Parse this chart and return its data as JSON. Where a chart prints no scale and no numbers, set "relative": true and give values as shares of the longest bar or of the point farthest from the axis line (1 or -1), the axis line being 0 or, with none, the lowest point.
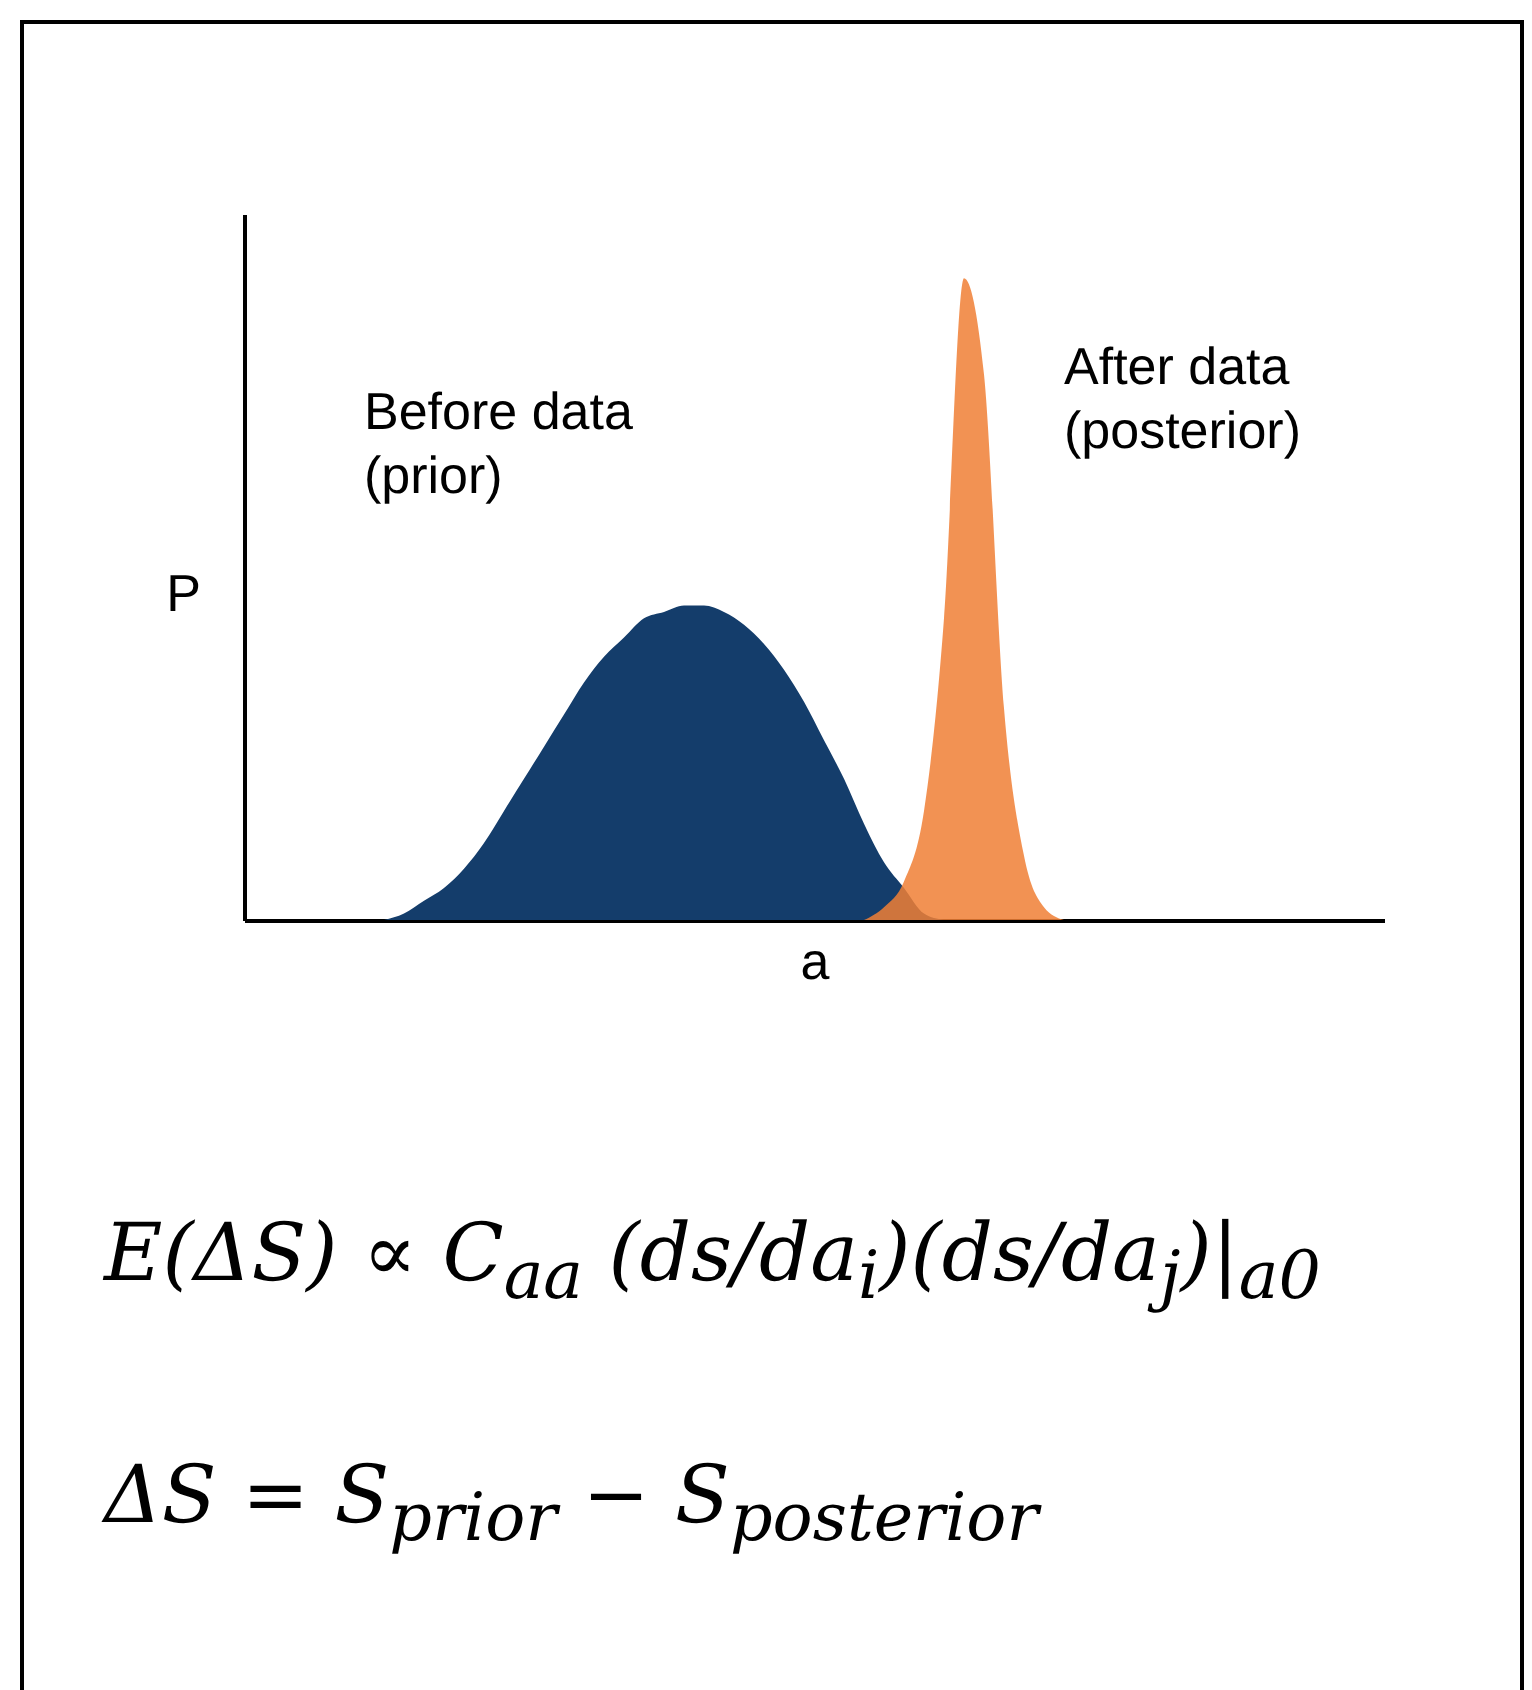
{
  "chart_data": {
    "type": "area",
    "relative": true,
    "xlabel": "a",
    "ylabel": "P",
    "categories": [
      null,
      null,
      null,
      null,
      null,
      null,
      null,
      null,
      null,
      null,
      null,
      null,
      null,
      null,
      null,
      null,
      null,
      null,
      null,
      null,
      null,
      null,
      null,
      null,
      null,
      null,
      null,
      null,
      null,
      null,
      null,
      null,
      null,
      null,
      null,
      null,
      null,
      null,
      null,
      null,
      null,
      null,
      null,
      null,
      null,
      null,
      null,
      null,
      null,
      null,
      null,
      null,
      null,
      null,
      null,
      null,
      null,
      null
    ],
    "series": [
      {
        "name": "Before data (prior)",
        "color": "#143d6b",
        "values": [
          null,
          null,
          null,
          null,
          null,
          null,
          null,
          0,
          0.01,
          0.03,
          0.05,
          0.08,
          0.12,
          0.17,
          0.22,
          0.27,
          0.32,
          0.37,
          0.41,
          0.44,
          0.47,
          0.48,
          0.49,
          0.49,
          0.48,
          0.46,
          0.43,
          0.39,
          0.34,
          0.28,
          0.22,
          0.15,
          0.09,
          0.05,
          0.01,
          0,
          null,
          null,
          null,
          null,
          null,
          null,
          null,
          null,
          null,
          null,
          null,
          null,
          null,
          null,
          null,
          null,
          null,
          null,
          null,
          null,
          null,
          null
        ]
      },
      {
        "name": "After data (posterior)",
        "color": "#f07f35",
        "values": [
          null,
          null,
          null,
          null,
          null,
          null,
          null,
          null,
          null,
          null,
          null,
          null,
          null,
          null,
          null,
          null,
          null,
          null,
          null,
          null,
          null,
          null,
          null,
          null,
          null,
          null,
          null,
          null,
          null,
          null,
          null,
          0,
          0.02,
          0.06,
          0.17,
          0.47,
          1,
          0.85,
          0.33,
          0.1,
          0.02,
          0,
          null,
          null,
          null,
          null,
          null,
          null,
          null,
          null,
          null,
          null,
          null,
          null,
          null,
          null,
          null,
          null
        ]
      }
    ],
    "annotations": [
      "E(ΔS) ∝ C$_{aa}$ (ds/da$_{i}$)(ds/da$_{j}$)|$_{a0}$",
      "ΔS = S$_{prior}$ − S$_{posterior}$"
    ]
  }
}
